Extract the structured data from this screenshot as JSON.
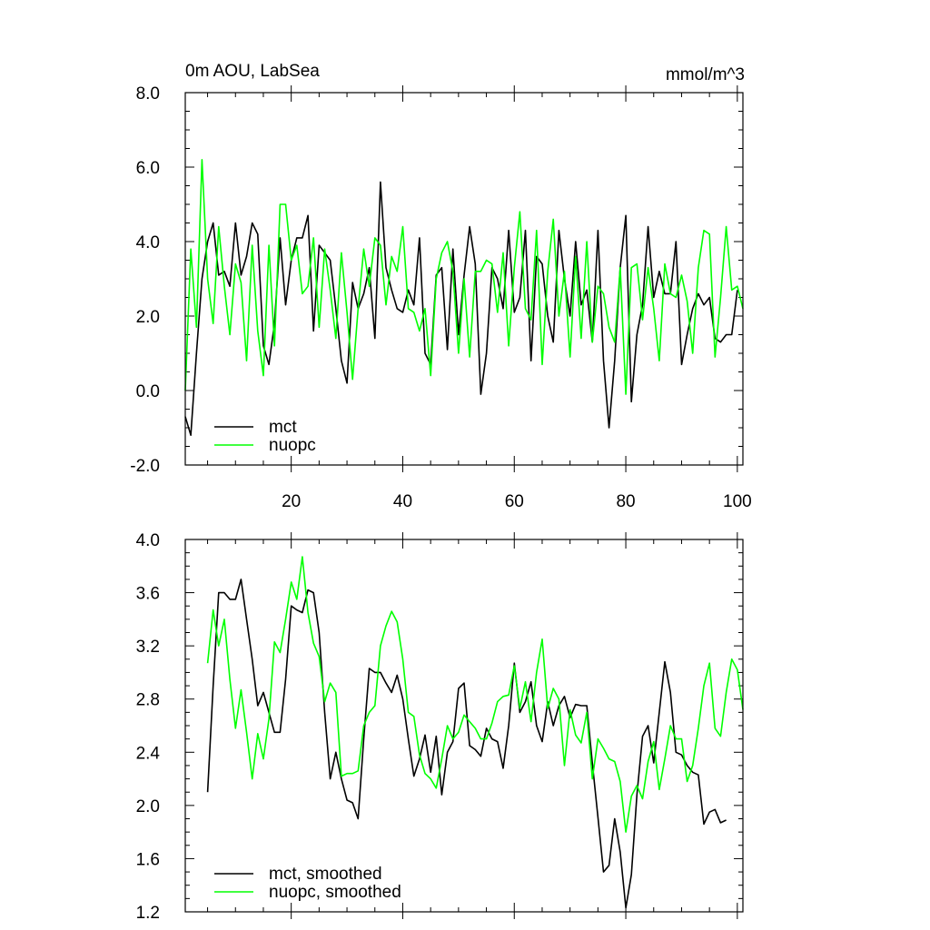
{
  "chart_data": [
    {
      "type": "line",
      "title": "0m AOU, LabSea",
      "units": "mmol/m^3",
      "xlim": [
        1,
        101
      ],
      "ylim": [
        -2.0,
        8.0
      ],
      "x_ticks": [
        20,
        40,
        60,
        80,
        100
      ],
      "x_tick_labels": [
        "20",
        "40",
        "60",
        "80",
        "100"
      ],
      "y_ticks": [
        -2.0,
        0.0,
        2.0,
        4.0,
        6.0,
        8.0
      ],
      "y_tick_labels": [
        "-2.0",
        "0.0",
        "2.0",
        "4.0",
        "6.0",
        "8.0"
      ],
      "grid": false,
      "legend_position": "bottom-left",
      "x_start": 1,
      "series": [
        {
          "name": "mct",
          "color": "#000000",
          "values": [
            -0.7,
            -1.2,
            1.0,
            3.0,
            4.0,
            4.5,
            3.1,
            3.2,
            2.8,
            4.5,
            3.1,
            3.6,
            4.5,
            4.2,
            1.2,
            0.7,
            1.8,
            4.1,
            2.3,
            3.5,
            4.1,
            4.1,
            4.7,
            1.6,
            3.9,
            3.7,
            3.5,
            2.2,
            0.8,
            0.2,
            2.9,
            2.2,
            2.6,
            3.3,
            1.4,
            5.6,
            3.3,
            2.7,
            2.2,
            2.1,
            2.7,
            2.3,
            4.1,
            1.0,
            0.7,
            3.1,
            3.3,
            1.1,
            3.8,
            1.5,
            3.1,
            4.4,
            3.4,
            -0.1,
            1.0,
            3.3,
            3.0,
            2.2,
            4.3,
            2.1,
            2.5,
            4.3,
            0.8,
            3.6,
            3.4,
            2.0,
            1.3,
            4.3,
            3.0,
            2.0,
            4.0,
            2.3,
            2.7,
            1.3,
            4.3,
            0.8,
            -1.0,
            0.8,
            3.3,
            4.7,
            -0.3,
            1.5,
            2.3,
            4.4,
            2.5,
            3.2,
            2.6,
            2.6,
            4.0,
            0.7,
            1.5,
            2.2,
            2.6,
            2.3,
            2.5,
            1.4,
            1.3,
            1.5,
            1.5,
            2.7
          ]
        },
        {
          "name": "nuopc",
          "color": "#00ff00",
          "values": [
            0.0,
            3.8,
            1.7,
            6.2,
            3.0,
            1.8,
            4.4,
            2.8,
            1.5,
            3.4,
            2.9,
            0.8,
            3.9,
            1.6,
            0.4,
            3.9,
            1.2,
            5.0,
            5.0,
            3.5,
            3.9,
            2.6,
            2.8,
            4.1,
            1.7,
            3.8,
            2.7,
            1.4,
            3.7,
            2.1,
            0.3,
            2.2,
            3.8,
            2.8,
            4.1,
            3.9,
            2.3,
            3.6,
            3.2,
            4.4,
            2.2,
            2.1,
            1.6,
            2.2,
            0.4,
            3.0,
            3.7,
            4.0,
            3.2,
            1.0,
            3.0,
            0.9,
            3.2,
            3.2,
            3.5,
            3.4,
            2.1,
            3.7,
            1.2,
            3.3,
            4.8,
            2.2,
            1.9,
            4.3,
            0.7,
            3.2,
            4.6,
            2.0,
            3.2,
            0.9,
            3.6,
            1.4,
            4.0,
            1.3,
            2.8,
            2.6,
            1.7,
            1.3,
            3.3,
            -0.1,
            3.3,
            3.4,
            1.9,
            3.3,
            2.2,
            0.8,
            3.4,
            2.6,
            2.5,
            3.1,
            2.4,
            1.0,
            3.3,
            4.3,
            4.2,
            0.9,
            2.5,
            4.4,
            2.7,
            2.8,
            2.2
          ]
        }
      ]
    },
    {
      "type": "line",
      "xlim": [
        1,
        101
      ],
      "ylim": [
        1.2,
        4.0
      ],
      "y_ticks": [
        1.2,
        1.6,
        2.0,
        2.4,
        2.8,
        3.2,
        3.6,
        4.0
      ],
      "y_tick_labels": [
        "1.2",
        "1.6",
        "2.0",
        "2.4",
        "2.8",
        "3.2",
        "3.6",
        "4.0"
      ],
      "grid": false,
      "legend_position": "bottom-left",
      "x_start": 5,
      "series": [
        {
          "name": "mct, smoothed",
          "color": "#000000",
          "values": [
            2.1,
            2.9,
            3.6,
            3.6,
            3.55,
            3.55,
            3.7,
            3.4,
            3.1,
            2.75,
            2.85,
            2.7,
            2.55,
            2.55,
            2.95,
            3.5,
            3.47,
            3.45,
            3.62,
            3.6,
            3.3,
            2.7,
            2.2,
            2.4,
            2.2,
            2.04,
            2.02,
            1.9,
            2.5,
            3.03,
            3.0,
            3.0,
            2.92,
            2.85,
            2.98,
            2.8,
            2.5,
            2.22,
            2.35,
            2.53,
            2.25,
            2.52,
            2.08,
            2.4,
            2.48,
            2.88,
            2.92,
            2.45,
            2.42,
            2.37,
            2.58,
            2.5,
            2.48,
            2.28,
            2.6,
            3.07,
            2.7,
            2.78,
            2.93,
            2.6,
            2.48,
            2.78,
            2.6,
            2.75,
            2.82,
            2.66,
            2.76,
            2.75,
            2.75,
            2.32,
            1.91,
            1.5,
            1.55,
            1.9,
            1.65,
            1.23,
            1.48,
            2.08,
            2.52,
            2.6,
            2.32,
            2.7,
            3.08,
            2.85,
            2.4,
            2.38,
            2.3,
            2.25,
            2.23,
            1.86,
            1.95,
            1.97,
            1.87,
            1.89
          ]
        },
        {
          "name": "nuopc, smoothed",
          "color": "#00ff00",
          "values": [
            3.07,
            3.47,
            3.2,
            3.4,
            2.95,
            2.58,
            2.87,
            2.55,
            2.2,
            2.54,
            2.35,
            2.65,
            3.23,
            3.15,
            3.4,
            3.68,
            3.55,
            3.87,
            3.45,
            3.22,
            3.12,
            2.78,
            2.92,
            2.85,
            2.22,
            2.24,
            2.24,
            2.26,
            2.6,
            2.7,
            2.75,
            3.2,
            3.35,
            3.46,
            3.38,
            3.1,
            2.7,
            2.67,
            2.38,
            2.24,
            2.2,
            2.13,
            2.35,
            2.6,
            2.5,
            2.55,
            2.68,
            2.63,
            2.58,
            2.5,
            2.5,
            2.62,
            2.78,
            2.82,
            2.83,
            3.05,
            2.73,
            2.93,
            2.63,
            3.0,
            3.25,
            2.73,
            2.88,
            2.8,
            2.3,
            2.72,
            2.53,
            2.47,
            2.7,
            2.2,
            2.5,
            2.43,
            2.35,
            2.33,
            2.18,
            1.8,
            2.07,
            2.15,
            2.05,
            2.33,
            2.48,
            2.12,
            2.35,
            2.6,
            2.5,
            2.5,
            2.18,
            2.3,
            2.58,
            2.9,
            3.07,
            2.58,
            2.52,
            2.85,
            3.1,
            3.02,
            2.72
          ]
        }
      ]
    }
  ]
}
